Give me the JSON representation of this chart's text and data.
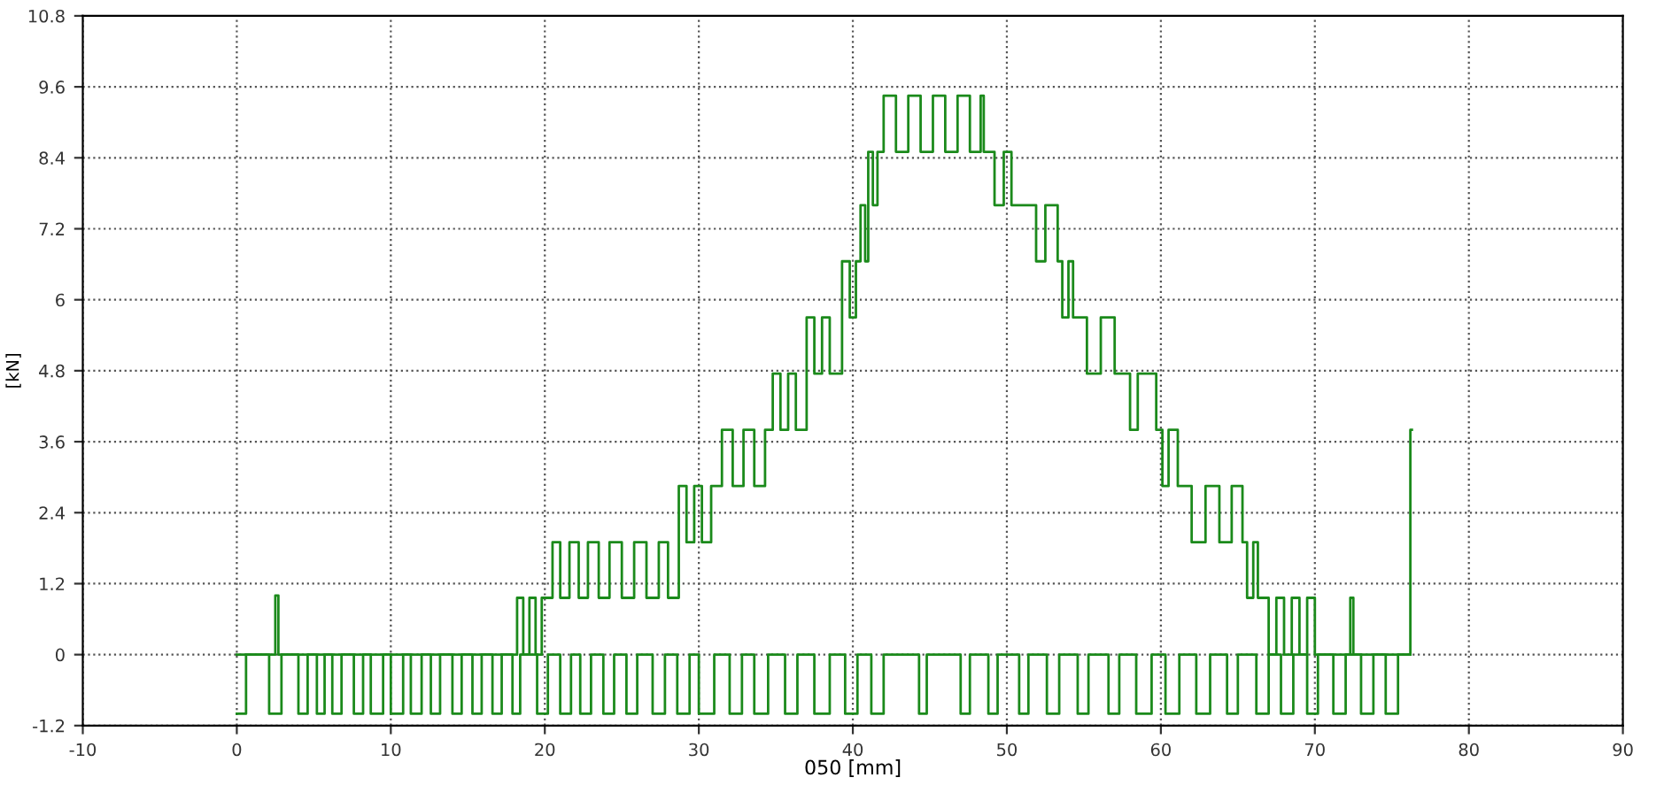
{
  "chart_data": {
    "type": "step",
    "xlabel": "050 [mm]",
    "ylabel": "[kN]",
    "xlim": [
      -10,
      90
    ],
    "xticks": [
      -10,
      0,
      10,
      20,
      30,
      40,
      50,
      60,
      70,
      80,
      90
    ],
    "ylim": [
      -1.2,
      10.8
    ],
    "yticks": [
      -1.2,
      0,
      1.2,
      2.4,
      3.6,
      4.8,
      6,
      7.2,
      8.4,
      9.6,
      10.8
    ],
    "grid": true,
    "marker": "none",
    "line_style": "solid",
    "series": [
      {
        "color": "#1b8a1b",
        "x": [
          0,
          2.5,
          2.7,
          18.2,
          18.6,
          19.0,
          19.4,
          19.8,
          20.5,
          21.0,
          21.6,
          22.2,
          22.8,
          23.5,
          24.2,
          25.0,
          25.8,
          26.6,
          27.4,
          28.0,
          28.7,
          29.2,
          29.7,
          30.2,
          30.8,
          31.5,
          32.2,
          32.9,
          33.6,
          34.3,
          34.8,
          35.3,
          35.8,
          36.3,
          37.0,
          37.5,
          38.0,
          38.5,
          39.3,
          39.8,
          40.2,
          40.5,
          40.8,
          41.0,
          41.3,
          41.6,
          42.0,
          42.8,
          43.6,
          44.4,
          45.2,
          46.0,
          46.8,
          47.6,
          48.3,
          48.5,
          49.2,
          49.8,
          50.3,
          51.3,
          51.9,
          52.5,
          53.3,
          53.6,
          54.0,
          54.3,
          55.2,
          56.1,
          57.0,
          57.5,
          58.0,
          58.5,
          59.7,
          60.1,
          60.5,
          61.1,
          62.0,
          62.9,
          63.8,
          64.6,
          65.3,
          65.6,
          66.0,
          66.3,
          67.0,
          67.5,
          68.0,
          68.5,
          69.0,
          69.5,
          70.0,
          72.3,
          72.5,
          76.2,
          76.3
        ],
        "values": [
          0,
          1.0,
          0,
          0.96,
          0,
          0.96,
          0,
          0.96,
          1.9,
          0.96,
          1.9,
          0.96,
          1.9,
          0.96,
          1.9,
          0.96,
          1.9,
          0.96,
          1.9,
          0.96,
          2.85,
          1.9,
          2.85,
          1.9,
          2.85,
          3.8,
          2.85,
          3.8,
          2.85,
          3.8,
          4.75,
          3.8,
          4.75,
          3.8,
          5.7,
          4.75,
          5.7,
          4.75,
          6.65,
          5.7,
          6.65,
          7.6,
          6.65,
          8.5,
          7.6,
          8.5,
          9.45,
          8.5,
          9.45,
          8.5,
          9.45,
          8.5,
          9.45,
          8.5,
          9.45,
          8.5,
          7.6,
          8.5,
          7.6,
          7.6,
          6.65,
          7.6,
          6.65,
          5.7,
          6.65,
          5.7,
          4.75,
          5.7,
          4.75,
          4.75,
          3.8,
          4.75,
          3.8,
          2.85,
          3.8,
          2.85,
          1.9,
          2.85,
          1.9,
          2.85,
          1.9,
          0.96,
          1.9,
          0.96,
          0,
          0.96,
          0,
          0.96,
          0,
          0.96,
          0,
          0.96,
          0,
          3.8,
          3.8
        ]
      },
      {
        "color": "#1b8a1b",
        "x": [
          0,
          0.6,
          2.1,
          2.9,
          4.0,
          4.6,
          5.2,
          5.7,
          6.2,
          6.8,
          7.6,
          8.2,
          8.7,
          9.5,
          10.0,
          10.8,
          11.3,
          12.0,
          12.6,
          13.2,
          14.0,
          14.6,
          15.3,
          15.9,
          16.6,
          17.2,
          17.9,
          18.4,
          19.5,
          20.2,
          21.0,
          21.7,
          22.3,
          23.0,
          23.8,
          24.5,
          25.3,
          26.0,
          27.0,
          27.8,
          28.6,
          29.4,
          30.0,
          31.0,
          32.0,
          32.8,
          33.6,
          34.5,
          35.6,
          36.4,
          37.5,
          38.5,
          39.5,
          40.3,
          41.2,
          42.0,
          44.3,
          44.8,
          47.0,
          47.6,
          48.8,
          49.4,
          50.8,
          51.4,
          52.6,
          53.4,
          54.6,
          55.3,
          56.6,
          57.3,
          58.4,
          59.4,
          60.3,
          61.2,
          62.3,
          63.2,
          64.3,
          65.0,
          66.2,
          67.0,
          67.8,
          68.6,
          69.5,
          70.2,
          71.2,
          72.0,
          73.0,
          73.8,
          74.6,
          75.4,
          76.2
        ],
        "values": [
          -1,
          0,
          -1,
          0,
          -1,
          0,
          -1,
          0,
          -1,
          0,
          -1,
          0,
          -1,
          0,
          -1,
          0,
          -1,
          0,
          -1,
          0,
          -1,
          0,
          -1,
          0,
          -1,
          0,
          -1,
          0,
          -1,
          0,
          -1,
          0,
          -1,
          0,
          -1,
          0,
          -1,
          0,
          -1,
          0,
          -1,
          0,
          -1,
          0,
          -1,
          0,
          -1,
          0,
          -1,
          0,
          -1,
          0,
          -1,
          0,
          -1,
          0,
          -1,
          0,
          -1,
          0,
          -1,
          0,
          -1,
          0,
          -1,
          0,
          -1,
          0,
          -1,
          0,
          -1,
          0,
          -1,
          0,
          -1,
          0,
          -1,
          0,
          -1,
          0,
          -1,
          0,
          -1,
          0,
          -1,
          0,
          -1,
          0,
          -1,
          0,
          0
        ]
      }
    ]
  }
}
